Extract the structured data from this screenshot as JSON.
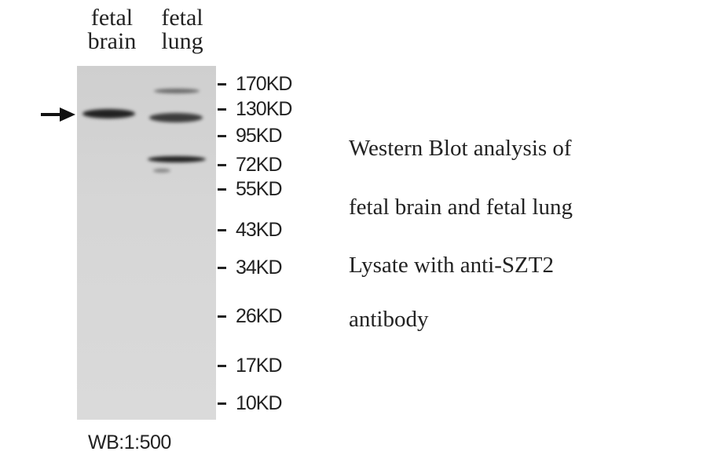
{
  "lanes": [
    {
      "line1": "fetal",
      "line2": "brain"
    },
    {
      "line1": "fetal",
      "line2": "lung"
    }
  ],
  "markers": [
    "170KD",
    "130KD",
    "95KD",
    "72KD",
    "55KD",
    "43KD",
    "34KD",
    "26KD",
    "17KD",
    "10KD"
  ],
  "arrow_icon": "arrow-right",
  "description": [
    "Western Blot analysis of",
    "fetal brain and fetal lung",
    "Lysate with anti-SZT2",
    "antibody"
  ],
  "dilution": "WB:1:500"
}
